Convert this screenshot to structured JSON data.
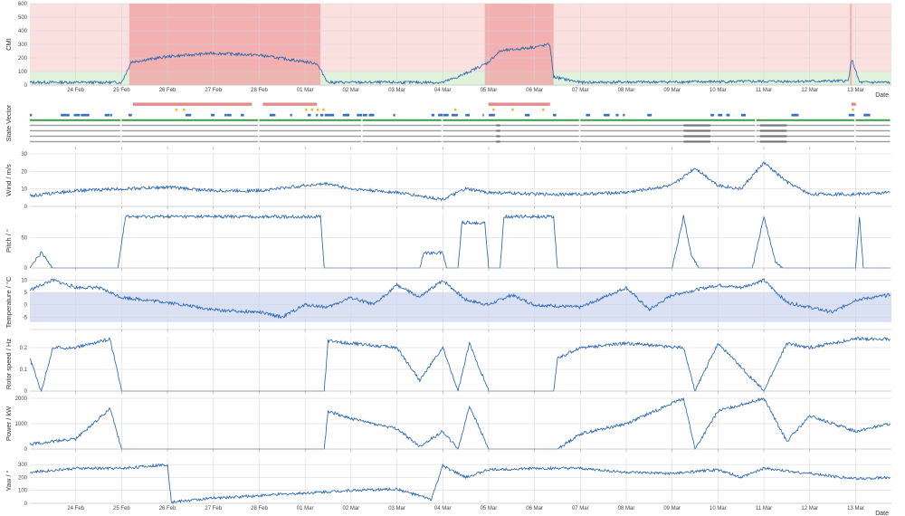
{
  "figure": {
    "x_axis_label": "Date",
    "date_ticks": [
      "24 Feb",
      "25 Feb",
      "26 Feb",
      "27 Feb",
      "28 Feb",
      "01 Mar",
      "02 Mar",
      "03 Mar",
      "04 Mar",
      "05 Mar",
      "06 Mar",
      "07 Mar",
      "08 Mar",
      "09 Mar",
      "10 Mar",
      "11 Mar",
      "12 Mar",
      "13 Mar"
    ],
    "date_range": [
      "23 Feb",
      "13 Mar"
    ],
    "line_color": "#1f5fad"
  },
  "chart_data": [
    {
      "type": "line",
      "ylabel": "CMI",
      "xlabel": "Date",
      "ylim": [
        0,
        600
      ],
      "yticks": [
        "0",
        "100",
        "200",
        "300",
        "400",
        "500",
        "600"
      ],
      "grid": true,
      "threshold_bands": [
        {
          "from": 0,
          "to": 100,
          "color": "#e1f2dc"
        },
        {
          "from": 100,
          "to": 600,
          "color": "#fbe0e0"
        }
      ],
      "highlight_ranges": [
        {
          "start": "25 Feb 04:00",
          "end": "01 Mar 08:00",
          "color": "#f0a0a0"
        },
        {
          "start": "04 Mar 22:00",
          "end": "06 Mar 10:00",
          "color": "#f0a0a0"
        },
        {
          "start": "12 Mar 21:00",
          "end": "12 Mar 22:00",
          "color": "#f0a0a0"
        }
      ],
      "series": [
        {
          "values": [
            {
              "x": "23 Feb 00:00",
              "y": 20
            },
            {
              "x": "25 Feb 00:00",
              "y": 20
            },
            {
              "x": "25 Feb 05:00",
              "y": 170
            },
            {
              "x": "26 Feb 00:00",
              "y": 210
            },
            {
              "x": "27 Feb 00:00",
              "y": 235
            },
            {
              "x": "28 Feb 00:00",
              "y": 220
            },
            {
              "x": "01 Mar 06:00",
              "y": 160
            },
            {
              "x": "01 Mar 12:00",
              "y": 20
            },
            {
              "x": "04 Mar 00:00",
              "y": 20
            },
            {
              "x": "04 Mar 08:00",
              "y": 60
            },
            {
              "x": "04 Mar 23:00",
              "y": 160
            },
            {
              "x": "05 Mar 06:00",
              "y": 250
            },
            {
              "x": "06 Mar 00:00",
              "y": 280
            },
            {
              "x": "06 Mar 08:00",
              "y": 300
            },
            {
              "x": "06 Mar 10:00",
              "y": 60
            },
            {
              "x": "07 Mar 00:00",
              "y": 20
            },
            {
              "x": "12 Mar 20:00",
              "y": 30
            },
            {
              "x": "12 Mar 22:00",
              "y": 190
            },
            {
              "x": "13 Mar 02:00",
              "y": 20
            },
            {
              "x": "13 Mar 18:00",
              "y": 20
            }
          ]
        }
      ]
    },
    {
      "type": "heatmap",
      "ylabel": "State Vector",
      "rows": 8,
      "row_colors": [
        "#e88a8a",
        "#f2b83a",
        "#3f6fba",
        "#2f9a3b",
        "#9a9a9a",
        "#9a9a9a",
        "#9a9a9a",
        "#9a9a9a"
      ]
    },
    {
      "type": "line",
      "ylabel": "Wind / m/s",
      "ylim": [
        0,
        30
      ],
      "yticks": [
        "0",
        "10",
        "20",
        "30"
      ],
      "grid": true,
      "series": [
        {
          "values": [
            {
              "x": "23 Feb 00:00",
              "y": 6
            },
            {
              "x": "24 Feb 00:00",
              "y": 9
            },
            {
              "x": "25 Feb 00:00",
              "y": 10
            },
            {
              "x": "26 Feb 00:00",
              "y": 11
            },
            {
              "x": "27 Feb 00:00",
              "y": 9
            },
            {
              "x": "28 Feb 00:00",
              "y": 9
            },
            {
              "x": "01 Mar 00:00",
              "y": 12
            },
            {
              "x": "01 Mar 12:00",
              "y": 13
            },
            {
              "x": "02 Mar 00:00",
              "y": 10
            },
            {
              "x": "03 Mar 00:00",
              "y": 8
            },
            {
              "x": "04 Mar 00:00",
              "y": 4
            },
            {
              "x": "04 Mar 12:00",
              "y": 10
            },
            {
              "x": "05 Mar 00:00",
              "y": 8
            },
            {
              "x": "06 Mar 00:00",
              "y": 7
            },
            {
              "x": "07 Mar 00:00",
              "y": 7
            },
            {
              "x": "08 Mar 00:00",
              "y": 8
            },
            {
              "x": "09 Mar 00:00",
              "y": 12
            },
            {
              "x": "09 Mar 12:00",
              "y": 22
            },
            {
              "x": "10 Mar 00:00",
              "y": 12
            },
            {
              "x": "10 Mar 12:00",
              "y": 10
            },
            {
              "x": "11 Mar 00:00",
              "y": 25
            },
            {
              "x": "11 Mar 12:00",
              "y": 14
            },
            {
              "x": "12 Mar 00:00",
              "y": 7
            },
            {
              "x": "13 Mar 00:00",
              "y": 7
            },
            {
              "x": "13 Mar 18:00",
              "y": 8
            }
          ]
        }
      ]
    },
    {
      "type": "line",
      "ylabel": "Pitch / °",
      "ylim": [
        0,
        90
      ],
      "yticks": [
        "0",
        "50"
      ],
      "grid": true,
      "series": [
        {
          "values": [
            {
              "x": "23 Feb 00:00",
              "y": 0
            },
            {
              "x": "23 Feb 06:00",
              "y": 25
            },
            {
              "x": "23 Feb 12:00",
              "y": 0
            },
            {
              "x": "24 Feb 22:00",
              "y": 0
            },
            {
              "x": "25 Feb 02:00",
              "y": 85
            },
            {
              "x": "01 Mar 08:00",
              "y": 85
            },
            {
              "x": "01 Mar 10:00",
              "y": 0
            },
            {
              "x": "03 Mar 12:00",
              "y": 0
            },
            {
              "x": "03 Mar 14:00",
              "y": 25
            },
            {
              "x": "04 Mar 00:00",
              "y": 25
            },
            {
              "x": "04 Mar 02:00",
              "y": 0
            },
            {
              "x": "04 Mar 08:00",
              "y": 0
            },
            {
              "x": "04 Mar 10:00",
              "y": 75
            },
            {
              "x": "04 Mar 22:00",
              "y": 75
            },
            {
              "x": "05 Mar 00:00",
              "y": 0
            },
            {
              "x": "05 Mar 06:00",
              "y": 0
            },
            {
              "x": "05 Mar 08:00",
              "y": 85
            },
            {
              "x": "06 Mar 10:00",
              "y": 85
            },
            {
              "x": "06 Mar 12:00",
              "y": 0
            },
            {
              "x": "09 Mar 00:00",
              "y": 0
            },
            {
              "x": "09 Mar 06:00",
              "y": 85
            },
            {
              "x": "09 Mar 10:00",
              "y": 20
            },
            {
              "x": "09 Mar 14:00",
              "y": 0
            },
            {
              "x": "10 Mar 18:00",
              "y": 0
            },
            {
              "x": "11 Mar 00:00",
              "y": 85
            },
            {
              "x": "11 Mar 06:00",
              "y": 10
            },
            {
              "x": "11 Mar 10:00",
              "y": 0
            },
            {
              "x": "13 Mar 00:00",
              "y": 0
            },
            {
              "x": "13 Mar 02:00",
              "y": 85
            },
            {
              "x": "13 Mar 04:00",
              "y": 0
            },
            {
              "x": "13 Mar 18:00",
              "y": 0
            }
          ]
        }
      ]
    },
    {
      "type": "line",
      "ylabel": "Temperature / °C",
      "ylim": [
        -10,
        12
      ],
      "yticks": [
        "-5",
        "0",
        "5",
        "10"
      ],
      "grid": true,
      "shaded_band": {
        "from": -7,
        "to": 5,
        "color": "#dbe1f5"
      },
      "series": [
        {
          "values": [
            {
              "x": "23 Feb 00:00",
              "y": 6
            },
            {
              "x": "23 Feb 12:00",
              "y": 10
            },
            {
              "x": "24 Feb 00:00",
              "y": 7
            },
            {
              "x": "24 Feb 12:00",
              "y": 7
            },
            {
              "x": "25 Feb 00:00",
              "y": 3
            },
            {
              "x": "26 Feb 00:00",
              "y": 1
            },
            {
              "x": "27 Feb 00:00",
              "y": -2
            },
            {
              "x": "28 Feb 00:00",
              "y": -3
            },
            {
              "x": "28 Feb 12:00",
              "y": -5
            },
            {
              "x": "01 Mar 00:00",
              "y": 0
            },
            {
              "x": "01 Mar 12:00",
              "y": -1
            },
            {
              "x": "02 Mar 00:00",
              "y": 3
            },
            {
              "x": "02 Mar 12:00",
              "y": 0
            },
            {
              "x": "03 Mar 00:00",
              "y": 8
            },
            {
              "x": "03 Mar 12:00",
              "y": 3
            },
            {
              "x": "04 Mar 00:00",
              "y": 10
            },
            {
              "x": "04 Mar 12:00",
              "y": 2
            },
            {
              "x": "05 Mar 00:00",
              "y": 0
            },
            {
              "x": "05 Mar 12:00",
              "y": 4
            },
            {
              "x": "06 Mar 00:00",
              "y": 0
            },
            {
              "x": "07 Mar 00:00",
              "y": -1
            },
            {
              "x": "08 Mar 00:00",
              "y": 7
            },
            {
              "x": "08 Mar 12:00",
              "y": -2
            },
            {
              "x": "09 Mar 00:00",
              "y": 4
            },
            {
              "x": "10 Mar 00:00",
              "y": 8
            },
            {
              "x": "10 Mar 12:00",
              "y": 7
            },
            {
              "x": "11 Mar 00:00",
              "y": 10
            },
            {
              "x": "11 Mar 12:00",
              "y": 1
            },
            {
              "x": "12 Mar 00:00",
              "y": -1
            },
            {
              "x": "12 Mar 12:00",
              "y": -3
            },
            {
              "x": "13 Mar 00:00",
              "y": 2
            },
            {
              "x": "13 Mar 18:00",
              "y": 4
            }
          ]
        }
      ]
    },
    {
      "type": "line",
      "ylabel": "Rotor speed / Hz",
      "ylim": [
        0,
        0.25
      ],
      "yticks": [
        "0",
        "0.1",
        "0.2"
      ],
      "grid": true,
      "series": [
        {
          "values": [
            {
              "x": "23 Feb 00:00",
              "y": 0.15
            },
            {
              "x": "23 Feb 06:00",
              "y": 0
            },
            {
              "x": "23 Feb 12:00",
              "y": 0.2
            },
            {
              "x": "24 Feb 00:00",
              "y": 0.2
            },
            {
              "x": "24 Feb 18:00",
              "y": 0.24
            },
            {
              "x": "25 Feb 00:00",
              "y": 0
            },
            {
              "x": "01 Mar 10:00",
              "y": 0
            },
            {
              "x": "01 Mar 12:00",
              "y": 0.23
            },
            {
              "x": "02 Mar 00:00",
              "y": 0.22
            },
            {
              "x": "03 Mar 00:00",
              "y": 0.2
            },
            {
              "x": "03 Mar 12:00",
              "y": 0.05
            },
            {
              "x": "04 Mar 00:00",
              "y": 0.2
            },
            {
              "x": "04 Mar 08:00",
              "y": 0
            },
            {
              "x": "04 Mar 14:00",
              "y": 0.22
            },
            {
              "x": "05 Mar 00:00",
              "y": 0
            },
            {
              "x": "06 Mar 10:00",
              "y": 0
            },
            {
              "x": "06 Mar 12:00",
              "y": 0.15
            },
            {
              "x": "07 Mar 00:00",
              "y": 0.2
            },
            {
              "x": "08 Mar 00:00",
              "y": 0.22
            },
            {
              "x": "09 Mar 06:00",
              "y": 0.2
            },
            {
              "x": "09 Mar 12:00",
              "y": 0
            },
            {
              "x": "10 Mar 00:00",
              "y": 0.22
            },
            {
              "x": "11 Mar 00:00",
              "y": 0
            },
            {
              "x": "11 Mar 12:00",
              "y": 0.22
            },
            {
              "x": "12 Mar 00:00",
              "y": 0.2
            },
            {
              "x": "13 Mar 00:00",
              "y": 0.24
            },
            {
              "x": "13 Mar 18:00",
              "y": 0.24
            }
          ]
        }
      ]
    },
    {
      "type": "line",
      "ylabel": "Power / kW",
      "ylim": [
        0,
        2000
      ],
      "yticks": [
        "0",
        "1000",
        "2000"
      ],
      "grid": true,
      "series": [
        {
          "values": [
            {
              "x": "23 Feb 00:00",
              "y": 200
            },
            {
              "x": "24 Feb 00:00",
              "y": 400
            },
            {
              "x": "24 Feb 18:00",
              "y": 1600
            },
            {
              "x": "25 Feb 00:00",
              "y": 0
            },
            {
              "x": "01 Mar 10:00",
              "y": 0
            },
            {
              "x": "01 Mar 12:00",
              "y": 1500
            },
            {
              "x": "02 Mar 00:00",
              "y": 1200
            },
            {
              "x": "03 Mar 00:00",
              "y": 800
            },
            {
              "x": "03 Mar 12:00",
              "y": 100
            },
            {
              "x": "04 Mar 00:00",
              "y": 700
            },
            {
              "x": "04 Mar 08:00",
              "y": 0
            },
            {
              "x": "04 Mar 14:00",
              "y": 1700
            },
            {
              "x": "05 Mar 00:00",
              "y": 0
            },
            {
              "x": "06 Mar 12:00",
              "y": 0
            },
            {
              "x": "07 Mar 00:00",
              "y": 600
            },
            {
              "x": "08 Mar 00:00",
              "y": 1000
            },
            {
              "x": "09 Mar 06:00",
              "y": 2000
            },
            {
              "x": "09 Mar 12:00",
              "y": 0
            },
            {
              "x": "10 Mar 00:00",
              "y": 1500
            },
            {
              "x": "11 Mar 00:00",
              "y": 2000
            },
            {
              "x": "11 Mar 12:00",
              "y": 300
            },
            {
              "x": "12 Mar 00:00",
              "y": 1300
            },
            {
              "x": "13 Mar 00:00",
              "y": 700
            },
            {
              "x": "13 Mar 18:00",
              "y": 1000
            }
          ]
        }
      ]
    },
    {
      "type": "line",
      "ylabel": "Yaw / °",
      "xlabel": "Date",
      "ylim": [
        0,
        350
      ],
      "yticks": [
        "0",
        "100",
        "200",
        "300"
      ],
      "grid": true,
      "series": [
        {
          "values": [
            {
              "x": "23 Feb 00:00",
              "y": 240
            },
            {
              "x": "24 Feb 00:00",
              "y": 270
            },
            {
              "x": "25 Feb 00:00",
              "y": 270
            },
            {
              "x": "26 Feb 00:00",
              "y": 300
            },
            {
              "x": "26 Feb 02:00",
              "y": 10
            },
            {
              "x": "27 Feb 00:00",
              "y": 40
            },
            {
              "x": "28 Feb 00:00",
              "y": 60
            },
            {
              "x": "01 Mar 00:00",
              "y": 80
            },
            {
              "x": "02 Mar 00:00",
              "y": 100
            },
            {
              "x": "03 Mar 00:00",
              "y": 110
            },
            {
              "x": "03 Mar 18:00",
              "y": 30
            },
            {
              "x": "04 Mar 00:00",
              "y": 290
            },
            {
              "x": "04 Mar 12:00",
              "y": 200
            },
            {
              "x": "05 Mar 00:00",
              "y": 260
            },
            {
              "x": "06 Mar 00:00",
              "y": 270
            },
            {
              "x": "07 Mar 00:00",
              "y": 270
            },
            {
              "x": "08 Mar 00:00",
              "y": 240
            },
            {
              "x": "09 Mar 00:00",
              "y": 230
            },
            {
              "x": "10 Mar 00:00",
              "y": 260
            },
            {
              "x": "10 Mar 12:00",
              "y": 200
            },
            {
              "x": "11 Mar 00:00",
              "y": 270
            },
            {
              "x": "12 Mar 00:00",
              "y": 230
            },
            {
              "x": "13 Mar 00:00",
              "y": 190
            },
            {
              "x": "13 Mar 18:00",
              "y": 200
            }
          ]
        }
      ]
    }
  ]
}
